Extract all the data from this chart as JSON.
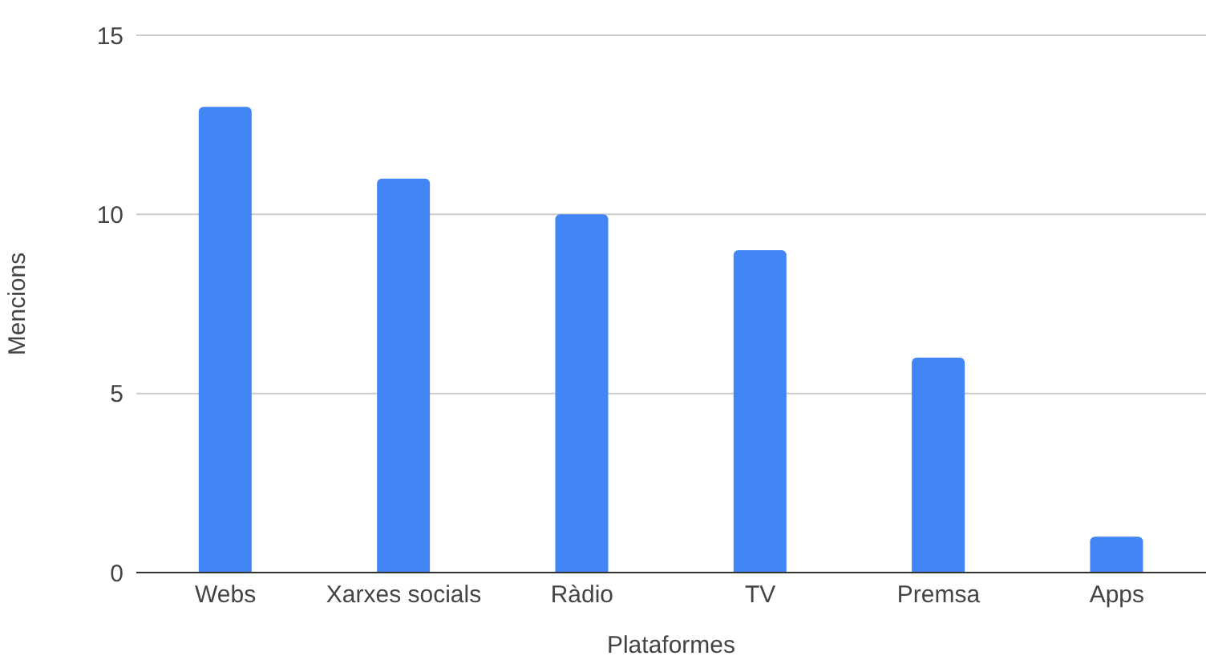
{
  "chart_data": {
    "type": "bar",
    "categories": [
      "Webs",
      "Xarxes socials",
      "Ràdio",
      "TV",
      "Premsa",
      "Apps"
    ],
    "values": [
      13,
      11,
      10,
      9,
      6,
      1
    ],
    "color": "#4285f4",
    "xlabel": "Plataformes",
    "ylabel": "Mencions",
    "ylim": [
      0,
      15
    ],
    "yticks": [
      0,
      5,
      10,
      15
    ],
    "grid": "y"
  }
}
